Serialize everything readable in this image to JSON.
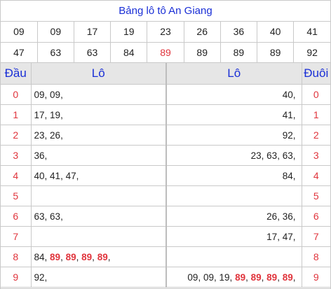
{
  "title": "Bảng lô tô An Giang",
  "numbers": [
    [
      "09",
      "09",
      "17",
      "19",
      "23",
      "26",
      "36",
      "40",
      "41"
    ],
    [
      "47",
      "63",
      "63",
      "84",
      "89",
      "89",
      "89",
      "89",
      "92"
    ]
  ],
  "highlight_index": [
    1,
    4
  ],
  "headers": {
    "dau": "Đầu",
    "lo_left": "Lô",
    "lo_right": "Lô",
    "duoi": "Đuôi"
  },
  "rows": [
    {
      "dau": "0",
      "left": [
        "09",
        "09"
      ],
      "right": [
        "40"
      ],
      "duoi": "0"
    },
    {
      "dau": "1",
      "left": [
        "17",
        "19"
      ],
      "right": [
        "41"
      ],
      "duoi": "1"
    },
    {
      "dau": "2",
      "left": [
        "23",
        "26"
      ],
      "right": [
        "92"
      ],
      "duoi": "2"
    },
    {
      "dau": "3",
      "left": [
        "36"
      ],
      "right": [
        "23",
        "63",
        "63"
      ],
      "duoi": "3"
    },
    {
      "dau": "4",
      "left": [
        "40",
        "41",
        "47"
      ],
      "right": [
        "84"
      ],
      "duoi": "4"
    },
    {
      "dau": "5",
      "left": [],
      "right": [],
      "duoi": "5"
    },
    {
      "dau": "6",
      "left": [
        "63",
        "63"
      ],
      "right": [
        "26",
        "36"
      ],
      "duoi": "6"
    },
    {
      "dau": "7",
      "left": [],
      "right": [
        "17",
        "47"
      ],
      "duoi": "7"
    },
    {
      "dau": "8",
      "left": [
        "84",
        "89",
        "89",
        "89",
        "89"
      ],
      "right": [],
      "duoi": "8"
    },
    {
      "dau": "9",
      "left": [
        "92"
      ],
      "right": [
        "09",
        "09",
        "19",
        "89",
        "89",
        "89",
        "89"
      ],
      "duoi": "9"
    }
  ],
  "highlight_value": "89",
  "colors": {
    "title": "#1a2fd6",
    "header": "#1a2fd6",
    "digit": "#e0343c",
    "highlight": "#e0343c",
    "header_bg": "#e6e6e6"
  }
}
